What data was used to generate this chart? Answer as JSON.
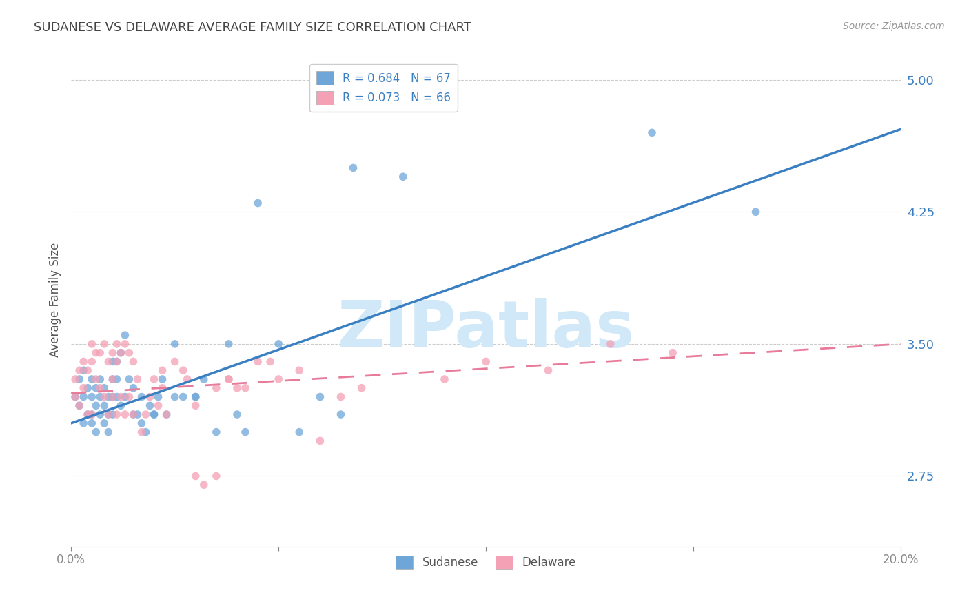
{
  "title": "SUDANESE VS DELAWARE AVERAGE FAMILY SIZE CORRELATION CHART",
  "source": "Source: ZipAtlas.com",
  "ylabel": "Average Family Size",
  "xmin": 0.0,
  "xmax": 0.2,
  "ymin": 2.35,
  "ymax": 5.15,
  "yticks": [
    2.75,
    3.5,
    4.25,
    5.0
  ],
  "xticks": [
    0.0,
    0.05,
    0.1,
    0.15,
    0.2
  ],
  "xtick_labels": [
    "0.0%",
    "",
    "",
    "",
    "20.0%"
  ],
  "sudanese_R": 0.684,
  "sudanese_N": 67,
  "delaware_R": 0.073,
  "delaware_N": 66,
  "sudanese_color": "#6ea6d8",
  "delaware_color": "#f4a0b5",
  "sudanese_line_color": "#3a7fc1",
  "delaware_line_color": "#e87a9a",
  "watermark": "ZIPatlas",
  "watermark_color": "#d0e8f7",
  "sudanese_line_x0": 0.0,
  "sudanese_line_y0": 3.05,
  "sudanese_line_x1": 0.2,
  "sudanese_line_y1": 4.72,
  "delaware_line_x0": 0.0,
  "delaware_line_y0": 3.22,
  "delaware_line_x1": 0.2,
  "delaware_line_y1": 3.5,
  "sudanese_x": [
    0.001,
    0.002,
    0.002,
    0.003,
    0.003,
    0.003,
    0.004,
    0.004,
    0.005,
    0.005,
    0.005,
    0.005,
    0.006,
    0.006,
    0.006,
    0.007,
    0.007,
    0.007,
    0.008,
    0.008,
    0.008,
    0.009,
    0.009,
    0.009,
    0.01,
    0.01,
    0.01,
    0.01,
    0.011,
    0.011,
    0.011,
    0.012,
    0.012,
    0.013,
    0.013,
    0.014,
    0.015,
    0.015,
    0.016,
    0.017,
    0.017,
    0.018,
    0.019,
    0.02,
    0.021,
    0.022,
    0.023,
    0.025,
    0.027,
    0.03,
    0.032,
    0.035,
    0.038,
    0.04,
    0.042,
    0.045,
    0.05,
    0.055,
    0.06,
    0.065,
    0.02,
    0.025,
    0.03,
    0.068,
    0.08,
    0.14,
    0.165
  ],
  "sudanese_y": [
    3.2,
    3.15,
    3.3,
    3.05,
    3.2,
    3.35,
    3.1,
    3.25,
    3.1,
    3.2,
    3.3,
    3.05,
    3.0,
    3.15,
    3.25,
    3.1,
    3.2,
    3.3,
    3.05,
    3.15,
    3.25,
    3.0,
    3.1,
    3.2,
    3.1,
    3.2,
    3.3,
    3.4,
    3.2,
    3.3,
    3.4,
    3.15,
    3.45,
    3.2,
    3.55,
    3.3,
    3.1,
    3.25,
    3.1,
    3.2,
    3.05,
    3.0,
    3.15,
    3.1,
    3.2,
    3.3,
    3.1,
    3.2,
    3.2,
    3.2,
    3.3,
    3.0,
    3.5,
    3.1,
    3.0,
    4.3,
    3.5,
    3.0,
    3.2,
    3.1,
    3.1,
    3.5,
    3.2,
    4.5,
    4.45,
    4.7,
    4.25
  ],
  "delaware_x": [
    0.001,
    0.001,
    0.002,
    0.002,
    0.003,
    0.003,
    0.004,
    0.004,
    0.005,
    0.005,
    0.005,
    0.006,
    0.006,
    0.007,
    0.007,
    0.008,
    0.008,
    0.009,
    0.009,
    0.01,
    0.01,
    0.01,
    0.011,
    0.011,
    0.011,
    0.012,
    0.012,
    0.013,
    0.013,
    0.014,
    0.014,
    0.015,
    0.015,
    0.016,
    0.017,
    0.018,
    0.019,
    0.02,
    0.021,
    0.022,
    0.023,
    0.025,
    0.027,
    0.03,
    0.032,
    0.035,
    0.038,
    0.04,
    0.045,
    0.05,
    0.055,
    0.06,
    0.065,
    0.07,
    0.022,
    0.028,
    0.03,
    0.035,
    0.038,
    0.042,
    0.048,
    0.09,
    0.1,
    0.115,
    0.13,
    0.145
  ],
  "delaware_y": [
    3.2,
    3.3,
    3.15,
    3.35,
    3.25,
    3.4,
    3.1,
    3.35,
    3.4,
    3.5,
    3.1,
    3.3,
    3.45,
    3.25,
    3.45,
    3.2,
    3.5,
    3.1,
    3.4,
    3.3,
    3.45,
    3.2,
    3.5,
    3.4,
    3.1,
    3.45,
    3.2,
    3.5,
    3.1,
    3.45,
    3.2,
    3.4,
    3.1,
    3.3,
    3.0,
    3.1,
    3.2,
    3.3,
    3.15,
    3.25,
    3.1,
    3.4,
    3.35,
    2.75,
    2.7,
    2.75,
    3.3,
    3.25,
    3.4,
    3.3,
    3.35,
    2.95,
    3.2,
    3.25,
    3.35,
    3.3,
    3.15,
    3.25,
    3.3,
    3.25,
    3.4,
    3.3,
    3.4,
    3.35,
    3.5,
    3.45
  ]
}
